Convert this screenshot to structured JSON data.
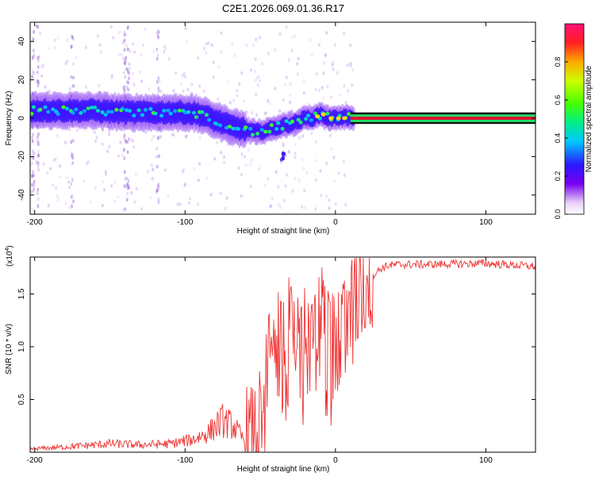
{
  "title": "C2E1.2026.069.01.36.R17",
  "chart_data": [
    {
      "type": "heatmap",
      "name": "spectrogram",
      "xlabel": "Height of straight line (km)",
      "ylabel": "Frequency (Hz)",
      "xlim": [
        -203,
        133
      ],
      "ylim": [
        -50,
        50
      ],
      "xticks": [
        -200,
        -100,
        0,
        100
      ],
      "yticks": [
        -40,
        -20,
        0,
        20,
        40
      ],
      "ridge": {
        "x": [
          -200,
          -180,
          -160,
          -140,
          -120,
          -100,
          -90,
          -80,
          -70,
          -60,
          -55,
          -50,
          -45,
          -40,
          -35,
          -30,
          -25,
          -20,
          -15,
          -10,
          -5,
          0,
          5,
          10,
          133
        ],
        "y": [
          4,
          4,
          4,
          3,
          3,
          3,
          2,
          -1,
          -4,
          -6,
          -7,
          -7,
          -6,
          -5,
          -4,
          -3,
          -2,
          0,
          0,
          2,
          0,
          0,
          1,
          0,
          0
        ]
      },
      "colorbar": {
        "label": "Normalized spectral amplitude",
        "range": [
          0,
          1
        ],
        "ticks": [
          0.0,
          0.2,
          0.4,
          0.6,
          0.8
        ],
        "tick_labels": [
          "0.0",
          "0.2",
          "0.4",
          "0.6",
          "0.8"
        ]
      }
    },
    {
      "type": "line",
      "name": "snr",
      "xlabel": "Height of straight line (km)",
      "ylabel": "SNR (10 * v/v)",
      "scale_label": "(x10",
      "scale_exponent": "4",
      "xlim": [
        -203,
        133
      ],
      "ylim": [
        0,
        1.85
      ],
      "xticks": [
        -200,
        -100,
        0,
        100
      ],
      "yticks": [
        0.5,
        1.0,
        1.5
      ],
      "ytick_labels": [
        "0.5",
        "1.0",
        "1.5"
      ],
      "color": "#ee3333",
      "envelope": {
        "x": [
          -203,
          -180,
          -150,
          -130,
          -110,
          -95,
          -85,
          -75,
          -68,
          -60,
          -55,
          -48,
          -44,
          -40,
          -35,
          -30,
          -25,
          -20,
          -15,
          -10,
          -5,
          0,
          5,
          10,
          15,
          20,
          25,
          30,
          35,
          45,
          60,
          100,
          133
        ],
        "y": [
          0.03,
          0.05,
          0.08,
          0.07,
          0.08,
          0.12,
          0.18,
          0.3,
          0.25,
          0.1,
          0.1,
          0.3,
          0.8,
          1.05,
          0.9,
          1.1,
          0.95,
          1.05,
          1.15,
          1.2,
          1.05,
          0.9,
          1.1,
          1.3,
          1.45,
          1.6,
          1.68,
          1.74,
          1.77,
          1.78,
          1.78,
          1.79,
          1.76
        ]
      }
    }
  ],
  "colors": {
    "line": "#ee3333",
    "ridge_core": "#e0122e",
    "grid": "#dddddd"
  }
}
